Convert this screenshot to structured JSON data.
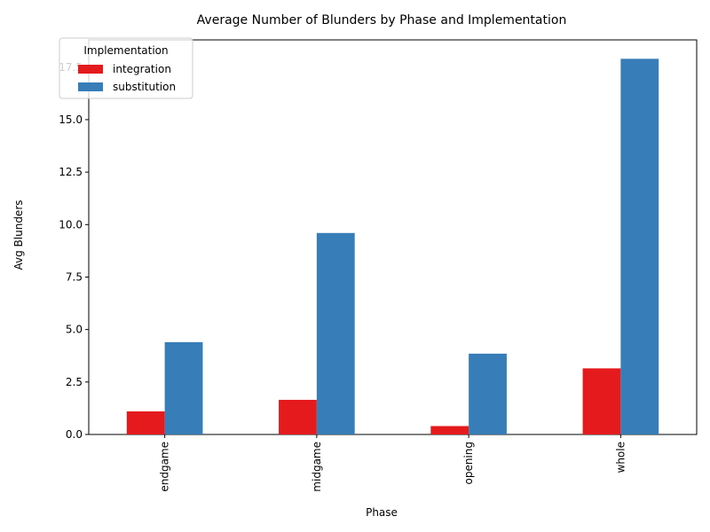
{
  "chart_data": {
    "type": "bar",
    "title": "Average Number of Blunders by Phase and Implementation",
    "xlabel": "Phase",
    "ylabel": "Avg Blunders",
    "categories": [
      "endgame",
      "midgame",
      "opening",
      "whole"
    ],
    "series": [
      {
        "name": "integration",
        "color": "#e41a1c",
        "values": [
          1.1,
          1.65,
          0.4,
          3.15
        ]
      },
      {
        "name": "substitution",
        "color": "#377eb8",
        "values": [
          4.4,
          9.6,
          3.85,
          17.9
        ]
      }
    ],
    "ylim": [
      0,
      18.8
    ],
    "yticks": [
      "0.0",
      "2.5",
      "5.0",
      "7.5",
      "10.0",
      "12.5",
      "15.0",
      "17.5"
    ],
    "legend": {
      "title": "Implementation",
      "position": "top-left"
    },
    "grid": false
  }
}
